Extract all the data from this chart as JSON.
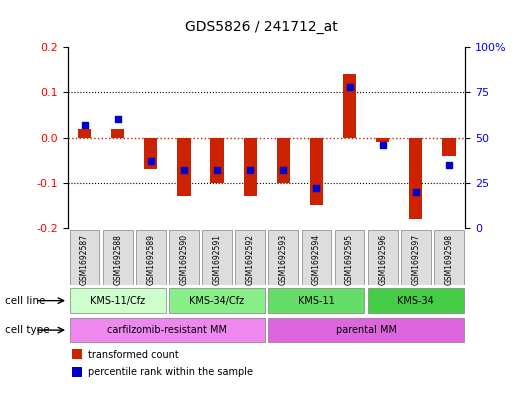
{
  "title": "GDS5826 / 241712_at",
  "samples": [
    "GSM1692587",
    "GSM1692588",
    "GSM1692589",
    "GSM1692590",
    "GSM1692591",
    "GSM1692592",
    "GSM1692593",
    "GSM1692594",
    "GSM1692595",
    "GSM1692596",
    "GSM1692597",
    "GSM1692598"
  ],
  "transformed_count": [
    0.02,
    0.02,
    -0.07,
    -0.13,
    -0.1,
    -0.13,
    -0.1,
    -0.15,
    0.14,
    -0.01,
    -0.18,
    -0.04
  ],
  "percentile_rank": [
    57,
    60,
    37,
    32,
    32,
    32,
    32,
    22,
    78,
    46,
    20,
    35
  ],
  "ylim_left": [
    -0.2,
    0.2
  ],
  "ylim_right": [
    0,
    100
  ],
  "yticks_left": [
    -0.2,
    -0.1,
    0.0,
    0.1,
    0.2
  ],
  "yticks_right": [
    0,
    25,
    50,
    75,
    100
  ],
  "bar_color": "#cc2200",
  "dot_color": "#0000cc",
  "zero_line_color": "#cc2200",
  "cell_line_groups": [
    {
      "label": "KMS-11/Cfz",
      "start": 0,
      "end": 3,
      "color": "#ccffcc"
    },
    {
      "label": "KMS-34/Cfz",
      "start": 3,
      "end": 6,
      "color": "#88ee88"
    },
    {
      "label": "KMS-11",
      "start": 6,
      "end": 9,
      "color": "#66dd66"
    },
    {
      "label": "KMS-34",
      "start": 9,
      "end": 12,
      "color": "#44cc44"
    }
  ],
  "cell_type_groups": [
    {
      "label": "carfilzomib-resistant MM",
      "start": 0,
      "end": 6,
      "color": "#ee88ee"
    },
    {
      "label": "parental MM",
      "start": 6,
      "end": 12,
      "color": "#dd66dd"
    }
  ],
  "cell_line_label": "cell line",
  "cell_type_label": "cell type",
  "legend_items": [
    {
      "color": "#cc2200",
      "label": "transformed count"
    },
    {
      "color": "#0000cc",
      "label": "percentile rank within the sample"
    }
  ]
}
